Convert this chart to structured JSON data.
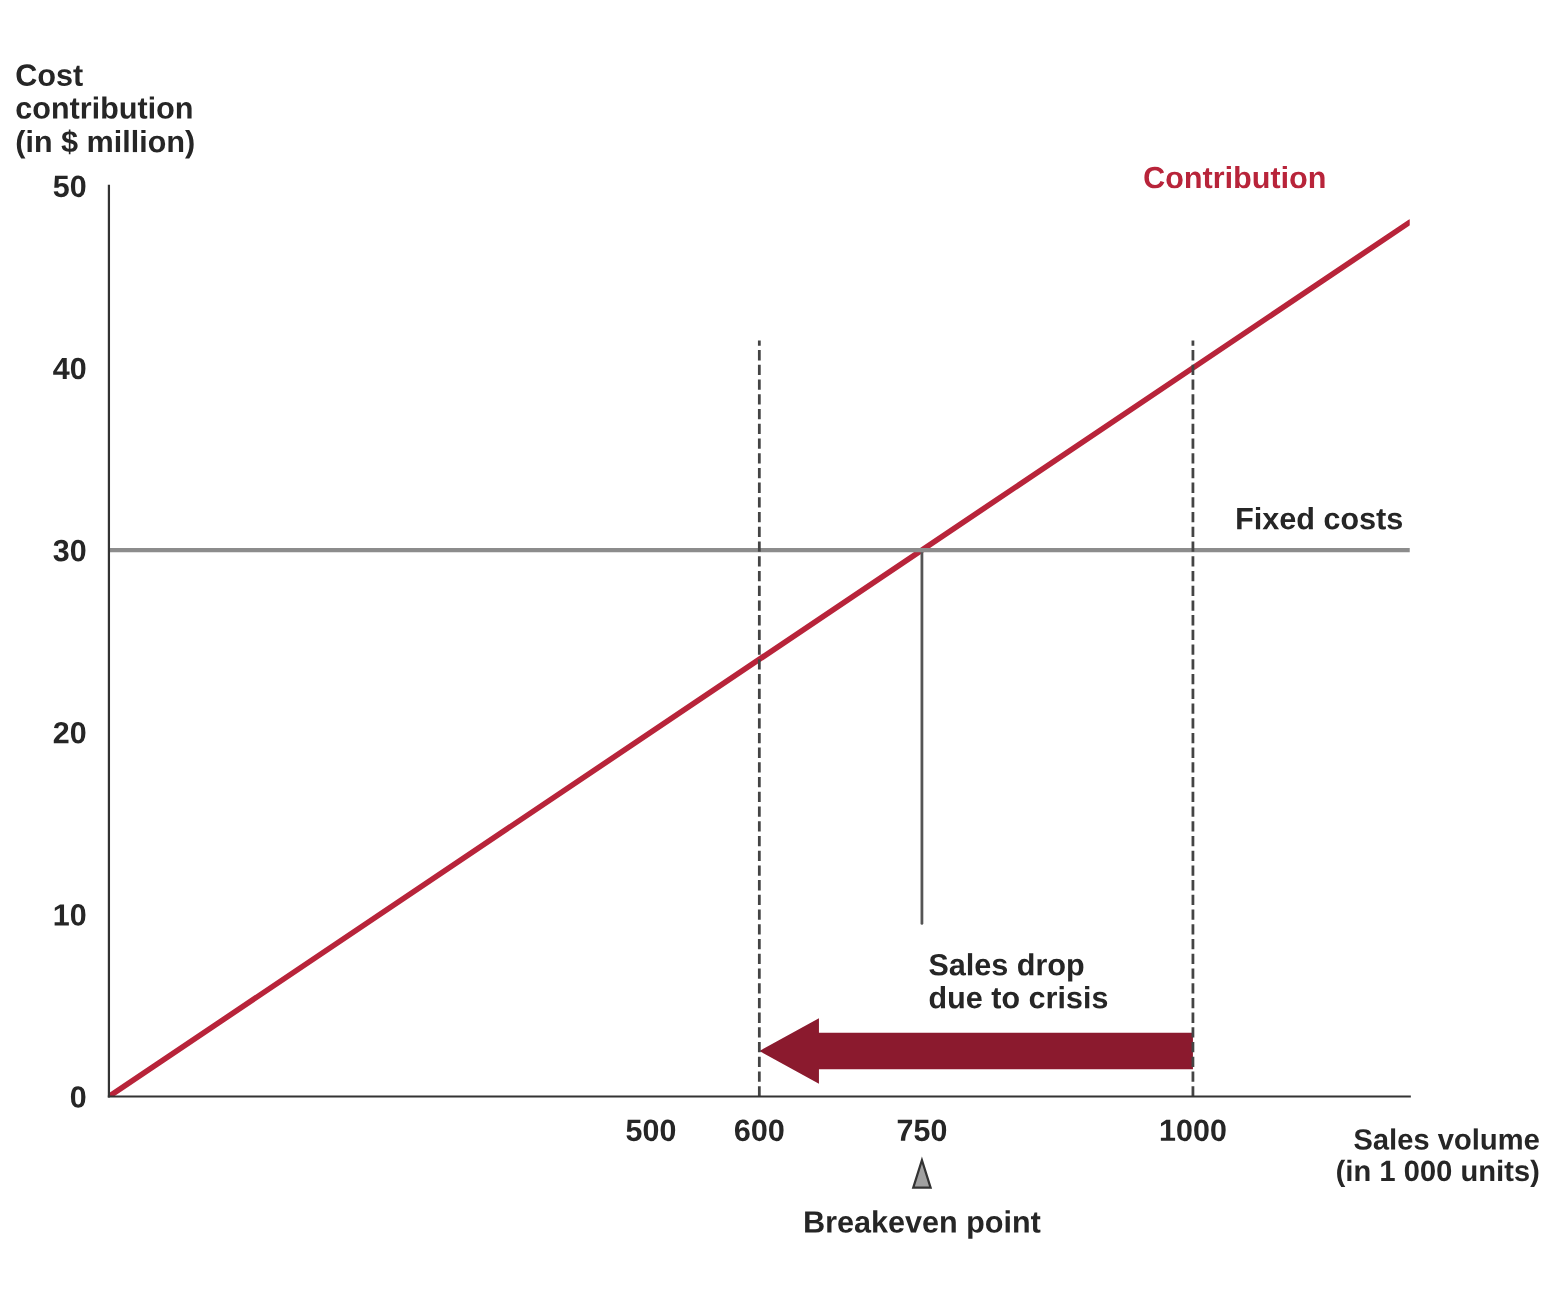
{
  "chart_data": {
    "type": "line",
    "xlabel": "Sales volume\n(in 1 000 units)",
    "ylabel": "Cost\ncontribution\n(in $ million)",
    "xlim": [
      0,
      1200
    ],
    "ylim": [
      0,
      50
    ],
    "xticks": [
      500,
      600,
      750,
      1000
    ],
    "yticks": [
      0,
      10,
      20,
      30,
      40,
      50
    ],
    "series": [
      {
        "name": "Contribution",
        "color": "#b8243a",
        "x": [
          0,
          1200
        ],
        "values": [
          0,
          48
        ]
      },
      {
        "color": "#555555",
        "x": [
          750,
          750
        ],
        "values": [
          30,
          9.5
        ],
        "line_style": "solid"
      }
    ],
    "ref_lines": [
      {
        "axis": "y",
        "value": 30,
        "label": "Fixed costs",
        "color": "#8c8c8c",
        "line_style": "solid"
      },
      {
        "axis": "x",
        "value": 600,
        "color": "#444444",
        "line_style": "dashed"
      },
      {
        "axis": "x",
        "value": 1000,
        "color": "#444444",
        "line_style": "dashed"
      }
    ],
    "annotations": [
      "Sales drop\ndue to crisis",
      "Breakeven point"
    ],
    "grid": false,
    "legend": false
  }
}
